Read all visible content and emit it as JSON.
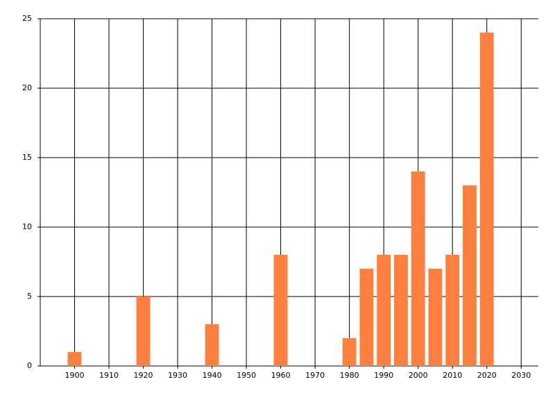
{
  "chart_data": {
    "type": "bar",
    "x": [
      1900,
      1920,
      1940,
      1960,
      1980,
      1985,
      1990,
      1995,
      2000,
      2005,
      2010,
      2015,
      2020
    ],
    "values": [
      1,
      5,
      3,
      8,
      2,
      7,
      8,
      8,
      14,
      7,
      8,
      13,
      24
    ],
    "color": "#ff7f3f",
    "xlim": [
      1890,
      2035
    ],
    "xticks": [
      1900,
      1910,
      1920,
      1930,
      1940,
      1950,
      1960,
      1970,
      1980,
      1990,
      2000,
      2010,
      2020,
      2030
    ],
    "ylim": [
      0,
      25
    ],
    "yticks": [
      0,
      5,
      10,
      15,
      20,
      25
    ],
    "grid": true
  }
}
